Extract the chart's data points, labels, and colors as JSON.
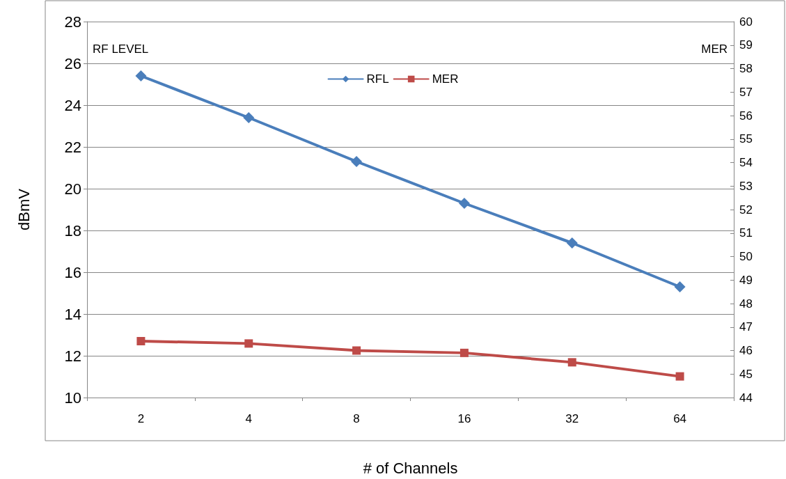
{
  "chart_data": {
    "type": "line",
    "xlabel": "# of Channels",
    "ylabel": "dBmV",
    "categories": [
      "2",
      "4",
      "8",
      "16",
      "32",
      "64"
    ],
    "series": [
      {
        "name": "RFL",
        "color": "#4a7ebb",
        "marker": "diamond",
        "values": [
          25.4,
          23.4,
          21.3,
          19.3,
          17.4,
          15.3
        ]
      },
      {
        "name": "MER",
        "color": "#be4b48",
        "marker": "square",
        "axis": "y2",
        "values": [
          46.4,
          46.3,
          46.0,
          45.9,
          45.5,
          44.9
        ]
      }
    ],
    "ylim": [
      10,
      28
    ],
    "yticks": [
      10,
      12,
      14,
      16,
      18,
      20,
      22,
      24,
      26,
      28
    ],
    "y2lim": [
      44,
      60
    ],
    "y2ticks": [
      44,
      45,
      46,
      47,
      48,
      49,
      50,
      51,
      52,
      53,
      54,
      55,
      56,
      57,
      58,
      59,
      60
    ],
    "annotations": [
      "RF LEVEL",
      "MER"
    ],
    "grid": "y",
    "legend": "top",
    "line_style": "solid"
  }
}
